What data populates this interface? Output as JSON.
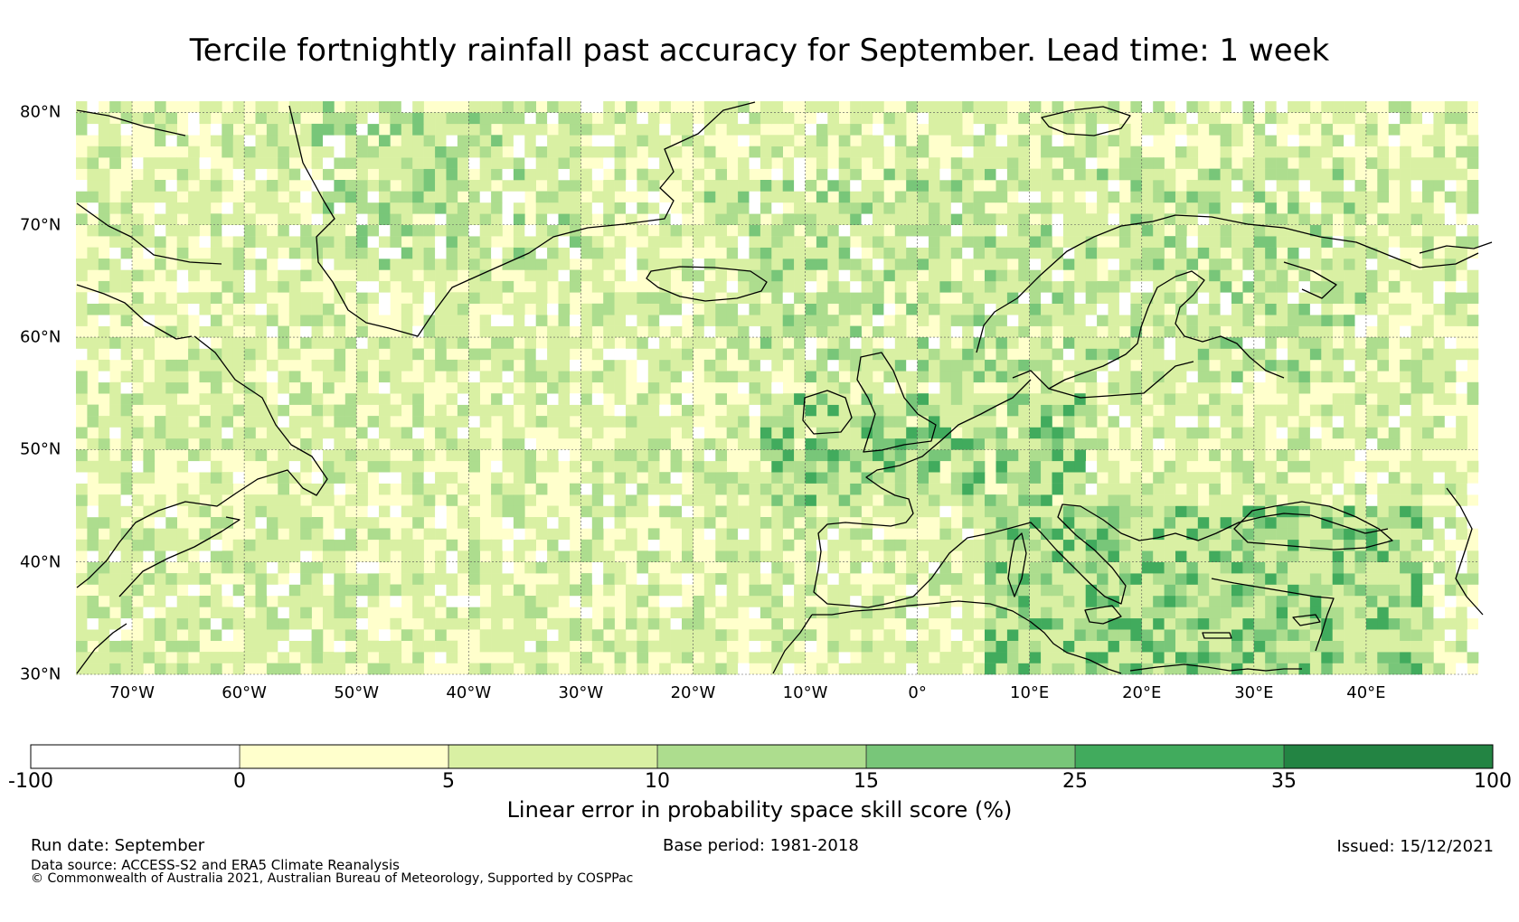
{
  "title": "Tercile fortnightly rainfall past accuracy for September. Lead time: 1 week",
  "map": {
    "lon_range": [
      -75,
      50
    ],
    "lat_range": [
      30,
      81
    ],
    "lat_labels": [
      {
        "lat": 80,
        "label": "80°N"
      },
      {
        "lat": 70,
        "label": "70°N"
      },
      {
        "lat": 60,
        "label": "60°N"
      },
      {
        "lat": 50,
        "label": "50°N"
      },
      {
        "lat": 40,
        "label": "40°N"
      },
      {
        "lat": 30,
        "label": "30°N"
      }
    ],
    "lon_labels": [
      {
        "lon": -70,
        "label": "70°W"
      },
      {
        "lon": -60,
        "label": "60°W"
      },
      {
        "lon": -50,
        "label": "50°W"
      },
      {
        "lon": -40,
        "label": "40°W"
      },
      {
        "lon": -30,
        "label": "30°W"
      },
      {
        "lon": -20,
        "label": "20°W"
      },
      {
        "lon": -10,
        "label": "10°W"
      },
      {
        "lon": 0,
        "label": "0°"
      },
      {
        "lon": 10,
        "label": "10°E"
      },
      {
        "lon": 20,
        "label": "20°E"
      },
      {
        "lon": 30,
        "label": "30°E"
      },
      {
        "lon": 40,
        "label": "40°E"
      }
    ]
  },
  "colorbar": {
    "bounds": [
      "-100",
      "0",
      "5",
      "10",
      "15",
      "25",
      "35",
      "100"
    ],
    "colors": [
      "#ffffff",
      "#ffffcc",
      "#d9f0a3",
      "#addd8e",
      "#78c679",
      "#41ab5d",
      "#238443"
    ],
    "label": "Linear error in probability space skill score (%)"
  },
  "footer": {
    "run_date": "Run date: September",
    "base_period": "Base period: 1981-2018",
    "issued": "Issued: 15/12/2021",
    "data_source": "Data source: ACCESS-S2 and ERA5 Climate Reanalysis",
    "copyright": "© Commonwealth of Australia 2021, Australian Bureau of Meteorology, Supported by COSPPac"
  }
}
